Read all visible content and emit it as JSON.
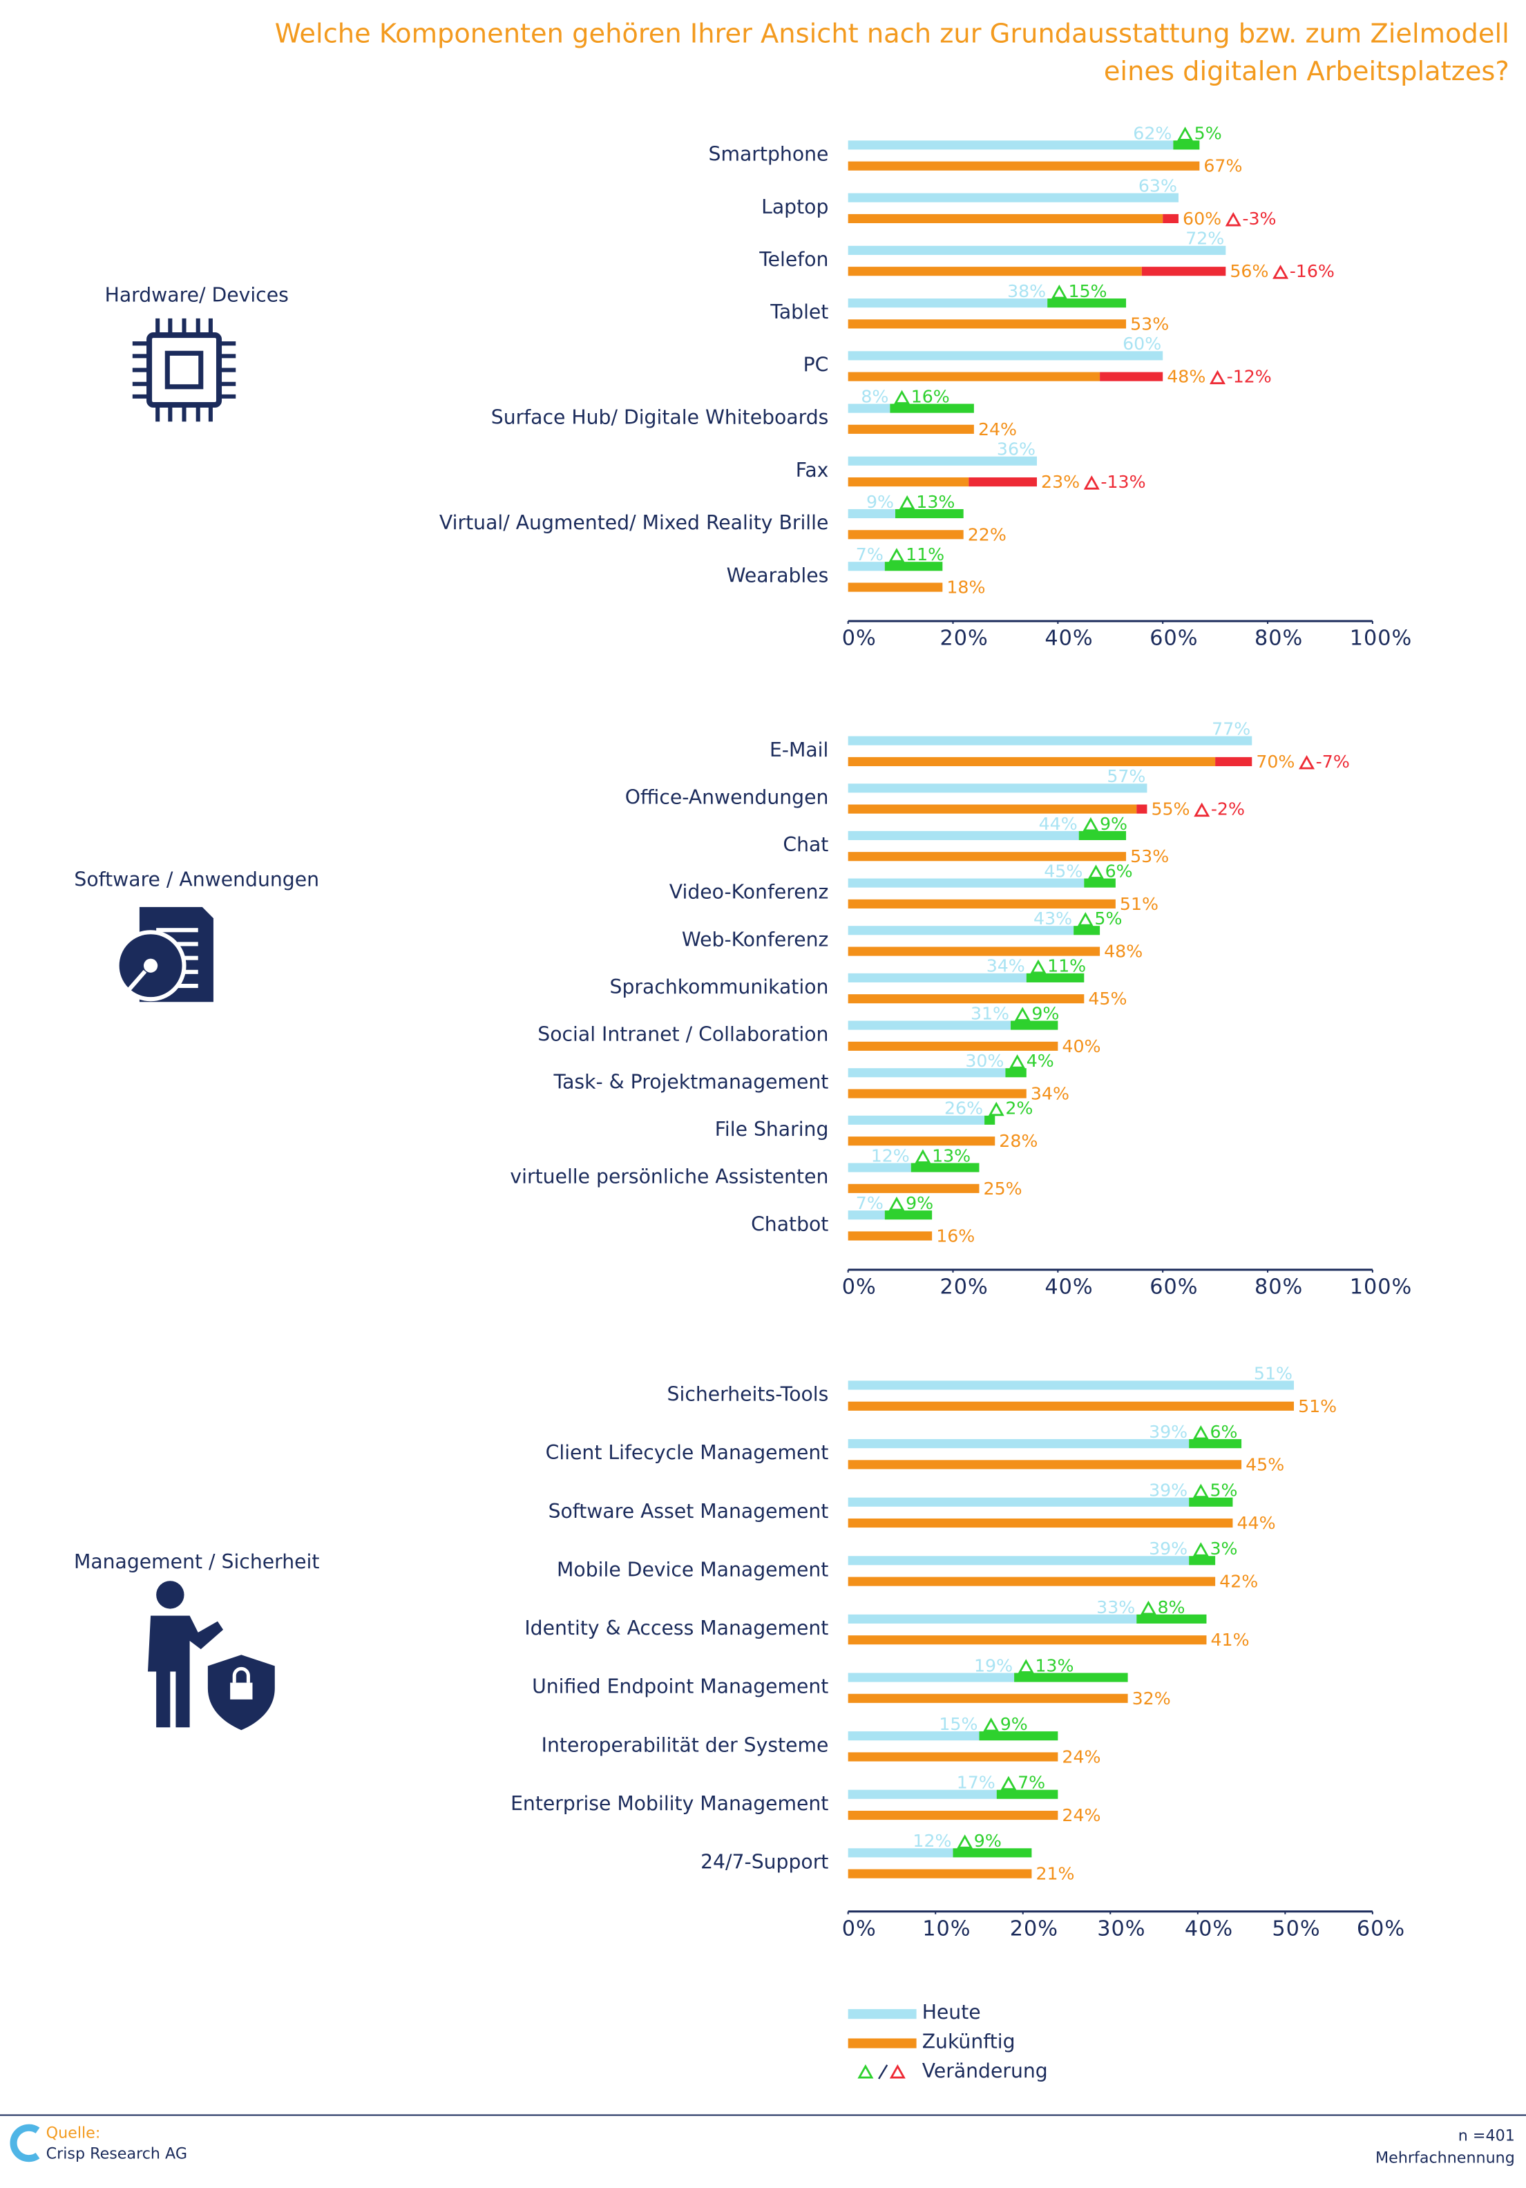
{
  "header": {
    "title_lines": [
      "Welche Komponenten gehören Ihrer Ansicht nach zur Grundausstattung bzw. zum Zielmodell",
      "eines digitalen Arbeitsplatzes?"
    ]
  },
  "chart_data": [
    {
      "type": "bar",
      "orientation": "horizontal",
      "group_label": "Hardware/ Devices",
      "categories": [
        "Smartphone",
        "Laptop",
        "Telefon",
        "Tablet",
        "PC",
        "Surface Hub/ Digitale Whiteboards",
        "Fax",
        "Virtual/ Augmented/ Mixed Reality Brille",
        "Wearables"
      ],
      "series": [
        {
          "name": "Heute",
          "color": "#a9e3f3",
          "values": [
            62,
            63,
            72,
            38,
            60,
            8,
            36,
            9,
            7
          ],
          "value_labels": [
            "62%",
            "63%",
            "72%",
            "38%",
            "60%",
            "8%",
            "36%",
            "9%",
            "7%"
          ]
        },
        {
          "name": "Zukünftig",
          "color": "#f39019",
          "values": [
            67,
            60,
            56,
            53,
            48,
            24,
            23,
            22,
            18
          ],
          "value_labels": [
            "67%",
            "60%",
            "56%",
            "53%",
            "48%",
            "24%",
            "23%",
            "22%",
            "18%"
          ]
        },
        {
          "name": "Veränderung",
          "color": "#2ed12e",
          "negative_color": "#ee2a35",
          "values": [
            5,
            -3,
            -16,
            15,
            -12,
            16,
            -13,
            13,
            11
          ],
          "value_labels": [
            "5%",
            "-3%",
            "-16%",
            "15%",
            "-12%",
            "16%",
            "-13%",
            "13%",
            "11%"
          ]
        }
      ],
      "xlim": [
        0,
        100
      ],
      "xticks": [
        {
          "value": 0,
          "label": "0%"
        },
        {
          "value": 20,
          "label": "20%"
        },
        {
          "value": 40,
          "label": "40%"
        },
        {
          "value": 60,
          "label": "60%"
        },
        {
          "value": 80,
          "label": "80%"
        },
        {
          "value": 100,
          "label": "100%"
        }
      ]
    },
    {
      "type": "bar",
      "orientation": "horizontal",
      "group_label": "Software / Anwendungen",
      "categories": [
        "E-Mail",
        "Office-Anwendungen",
        "Chat",
        "Video-Konferenz",
        "Web-Konferenz",
        "Sprachkommunikation",
        "Social Intranet / Collaboration",
        "Task- & Projektmanagement",
        "File Sharing",
        "virtuelle persönliche Assistenten",
        "Chatbot"
      ],
      "series": [
        {
          "name": "Heute",
          "color": "#a9e3f3",
          "values": [
            77,
            57,
            44,
            45,
            43,
            34,
            31,
            30,
            26,
            12,
            7
          ],
          "value_labels": [
            "77%",
            "57%",
            "44%",
            "45%",
            "43%",
            "34%",
            "31%",
            "30%",
            "26%",
            "12%",
            "7%"
          ]
        },
        {
          "name": "Zukünftig",
          "color": "#f39019",
          "values": [
            70,
            55,
            53,
            51,
            48,
            45,
            40,
            34,
            28,
            25,
            16
          ],
          "value_labels": [
            "70%",
            "55%",
            "53%",
            "51%",
            "48%",
            "45%",
            "40%",
            "34%",
            "28%",
            "25%",
            "16%"
          ]
        },
        {
          "name": "Veränderung",
          "color": "#2ed12e",
          "negative_color": "#ee2a35",
          "values": [
            -7,
            -2,
            9,
            6,
            5,
            11,
            9,
            4,
            2,
            13,
            9
          ],
          "value_labels": [
            "-7%",
            "-2%",
            "9%",
            "6%",
            "5%",
            "11%",
            "9%",
            "4%",
            "2%",
            "13%",
            "9%"
          ]
        }
      ],
      "xlim": [
        0,
        100
      ],
      "xticks": [
        {
          "value": 0,
          "label": "0%"
        },
        {
          "value": 20,
          "label": "20%"
        },
        {
          "value": 40,
          "label": "40%"
        },
        {
          "value": 60,
          "label": "60%"
        },
        {
          "value": 80,
          "label": "80%"
        },
        {
          "value": 100,
          "label": "100%"
        }
      ]
    },
    {
      "type": "bar",
      "orientation": "horizontal",
      "group_label": "Management / Sicherheit",
      "categories": [
        "Sicherheits-Tools",
        "Client Lifecycle Management",
        "Software Asset Management",
        "Mobile Device Management",
        "Identity & Access Management",
        "Unified Endpoint Management",
        "Interoperabilität der Systeme",
        "Enterprise Mobility Management",
        "24/7-Support"
      ],
      "series": [
        {
          "name": "Heute",
          "color": "#a9e3f3",
          "values": [
            51,
            39,
            39,
            39,
            33,
            19,
            15,
            17,
            12
          ],
          "value_labels": [
            "51%",
            "39%",
            "39%",
            "39%",
            "33%",
            "19%",
            "15%",
            "17%",
            "12%"
          ]
        },
        {
          "name": "Zukünftig",
          "color": "#f39019",
          "values": [
            51,
            45,
            44,
            42,
            41,
            32,
            24,
            24,
            21
          ],
          "value_labels": [
            "51%",
            "45%",
            "44%",
            "42%",
            "41%",
            "32%",
            "24%",
            "24%",
            "21%"
          ]
        },
        {
          "name": "Veränderung",
          "color": "#2ed12e",
          "negative_color": "#ee2a35",
          "values": [
            null,
            6,
            5,
            3,
            8,
            13,
            9,
            7,
            9
          ],
          "value_labels": [
            null,
            "6%",
            "5%",
            "3%",
            "8%",
            "13%",
            "9%",
            "7%",
            "9%"
          ]
        }
      ],
      "xlim": [
        0,
        60
      ],
      "xticks": [
        {
          "value": 0,
          "label": "0%"
        },
        {
          "value": 10,
          "label": "10%"
        },
        {
          "value": 20,
          "label": "20%"
        },
        {
          "value": 30,
          "label": "30%"
        },
        {
          "value": 40,
          "label": "40%"
        },
        {
          "value": 50,
          "label": "50%"
        },
        {
          "value": 60,
          "label": "60%"
        }
      ]
    }
  ],
  "footer": {
    "source_label": "Quelle:",
    "source": "Crisp Research AG",
    "n": "n =401",
    "note": "Mehrfachnennung"
  }
}
